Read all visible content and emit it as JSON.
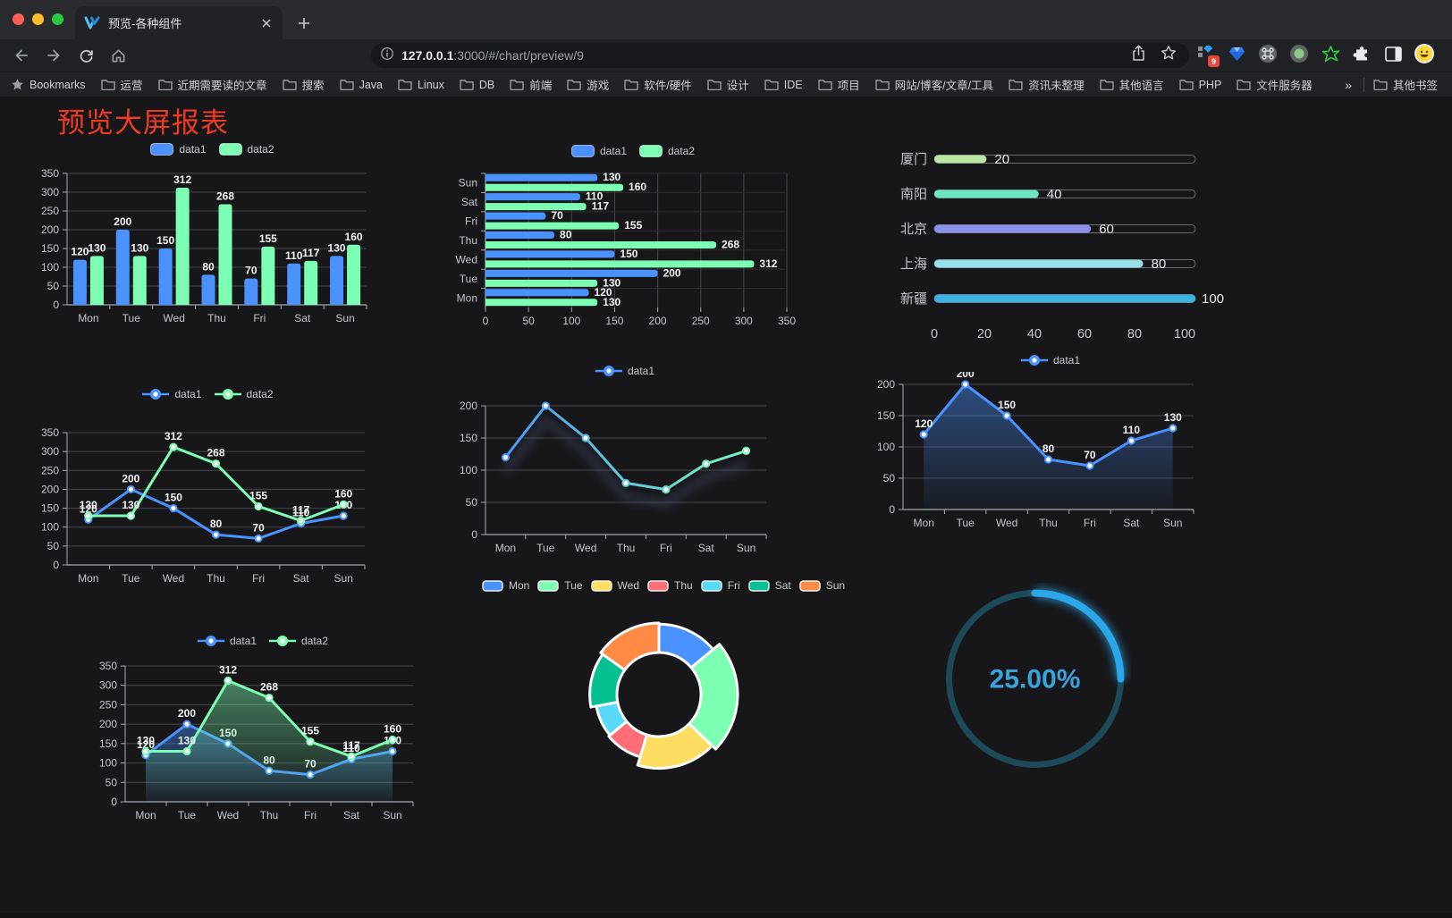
{
  "browser": {
    "tab_title": "预览-各种组件",
    "url_host": "127.0.0.1",
    "url_rest": ":3000/#/chart/preview/9",
    "extensions_badge": "9",
    "bookmarks_label": "Bookmarks",
    "bookmarks": [
      "运营",
      "近期需要读的文章",
      "搜索",
      "Java",
      "Linux",
      "DB",
      "前端",
      "游戏",
      "软件/硬件",
      "设计",
      "IDE",
      "项目",
      "网站/博客/文章/工具",
      "资讯未整理",
      "其他语言",
      "PHP",
      "文件服务器"
    ],
    "bookmarks_overflow": "»",
    "other_bookmarks": "其他书签"
  },
  "page": {
    "title": "预览大屏报表",
    "title_color": "#ef3b24",
    "background": "#17171a"
  },
  "chart_data": [
    {
      "id": "bar-vertical",
      "type": "bar",
      "categories": [
        "Mon",
        "Tue",
        "Wed",
        "Thu",
        "Fri",
        "Sat",
        "Sun"
      ],
      "series": [
        {
          "name": "data1",
          "color": "#4992ff",
          "values": [
            120,
            200,
            150,
            80,
            70,
            110,
            130
          ]
        },
        {
          "name": "data2",
          "color": "#7cffb2",
          "values": [
            130,
            130,
            312,
            268,
            155,
            117,
            160
          ]
        }
      ],
      "ylim": [
        0,
        350
      ],
      "ystep": 50,
      "value_labels": true,
      "legend": true,
      "grid": true
    },
    {
      "id": "bar-horizontal",
      "type": "bar-horizontal",
      "categories": [
        "Mon",
        "Tue",
        "Wed",
        "Thu",
        "Fri",
        "Sat",
        "Sun"
      ],
      "display_top_to_bottom": [
        "Sun",
        "Sat",
        "Fri",
        "Thu",
        "Wed",
        "Tue",
        "Mon"
      ],
      "series": [
        {
          "name": "data1",
          "color": "#4992ff",
          "values": [
            120,
            200,
            150,
            80,
            70,
            110,
            130
          ]
        },
        {
          "name": "data2",
          "color": "#7cffb2",
          "values": [
            130,
            130,
            312,
            268,
            155,
            117,
            160
          ]
        }
      ],
      "xlim": [
        0,
        350
      ],
      "xstep": 50,
      "value_labels": true,
      "legend": true,
      "grid": true
    },
    {
      "id": "progress-bars",
      "type": "progress",
      "items": [
        {
          "label": "厦门",
          "value": 20,
          "color": "#bce7a2"
        },
        {
          "label": "南阳",
          "value": 40,
          "color": "#6be6c1"
        },
        {
          "label": "北京",
          "value": 60,
          "color": "#8d90e8"
        },
        {
          "label": "上海",
          "value": 80,
          "color": "#96dee8"
        },
        {
          "label": "新疆",
          "value": 100,
          "color": "#3fb1e3"
        }
      ],
      "xlim": [
        0,
        100
      ],
      "xticks": [
        0,
        20,
        40,
        60,
        80,
        100
      ]
    },
    {
      "id": "line-two-series",
      "type": "line",
      "categories": [
        "Mon",
        "Tue",
        "Wed",
        "Thu",
        "Fri",
        "Sat",
        "Sun"
      ],
      "series": [
        {
          "name": "data1",
          "color": "#4992ff",
          "values": [
            120,
            200,
            150,
            80,
            70,
            110,
            130
          ]
        },
        {
          "name": "data2",
          "color": "#7cffb2",
          "values": [
            130,
            130,
            312,
            268,
            155,
            117,
            160
          ]
        }
      ],
      "ylim": [
        0,
        350
      ],
      "ystep": 50,
      "value_labels": true,
      "legend": true,
      "grid": true
    },
    {
      "id": "line-gradient-shadow",
      "type": "line",
      "categories": [
        "Mon",
        "Tue",
        "Wed",
        "Thu",
        "Fri",
        "Sat",
        "Sun"
      ],
      "series": [
        {
          "name": "data1",
          "color": "#4992ff",
          "gradient_stroke": [
            "#4992ff",
            "#7cffb2"
          ],
          "shadow": true,
          "values": [
            120,
            200,
            150,
            80,
            70,
            110,
            130
          ]
        }
      ],
      "ylim": [
        0,
        200
      ],
      "ystep": 50,
      "value_labels": false,
      "legend": true,
      "grid": true
    },
    {
      "id": "line-area",
      "type": "line",
      "categories": [
        "Mon",
        "Tue",
        "Wed",
        "Thu",
        "Fri",
        "Sat",
        "Sun"
      ],
      "series": [
        {
          "name": "data1",
          "color": "#4992ff",
          "area": true,
          "values": [
            120,
            200,
            150,
            80,
            70,
            110,
            130
          ]
        }
      ],
      "ylim": [
        0,
        200
      ],
      "ystep": 50,
      "value_labels": true,
      "legend": true,
      "grid": true
    },
    {
      "id": "line-two-area",
      "type": "line",
      "categories": [
        "Mon",
        "Tue",
        "Wed",
        "Thu",
        "Fri",
        "Sat",
        "Sun"
      ],
      "series": [
        {
          "name": "data1",
          "color": "#4992ff",
          "area": true,
          "values": [
            120,
            200,
            150,
            80,
            70,
            110,
            130
          ]
        },
        {
          "name": "data2",
          "color": "#7cffb2",
          "area": true,
          "values": [
            130,
            130,
            312,
            268,
            155,
            117,
            160
          ]
        }
      ],
      "ylim": [
        0,
        350
      ],
      "ystep": 50,
      "value_labels": true,
      "legend": true,
      "grid": true
    },
    {
      "id": "rose-donut",
      "type": "pie",
      "rose": true,
      "categories": [
        "Mon",
        "Tue",
        "Wed",
        "Thu",
        "Fri",
        "Sat",
        "Sun"
      ],
      "values": [
        120,
        200,
        150,
        80,
        70,
        110,
        130
      ],
      "colors": [
        "#4992ff",
        "#7cffb2",
        "#fddd60",
        "#ff6e76",
        "#58d9f9",
        "#05c091",
        "#ff8a45"
      ],
      "legend": true
    },
    {
      "id": "gauge-progress",
      "type": "gauge",
      "percent": 25,
      "label": "25.00%",
      "color": "#2aa7e8",
      "track_color": "#1d4a59",
      "text_color": "#3aa3dc"
    }
  ]
}
